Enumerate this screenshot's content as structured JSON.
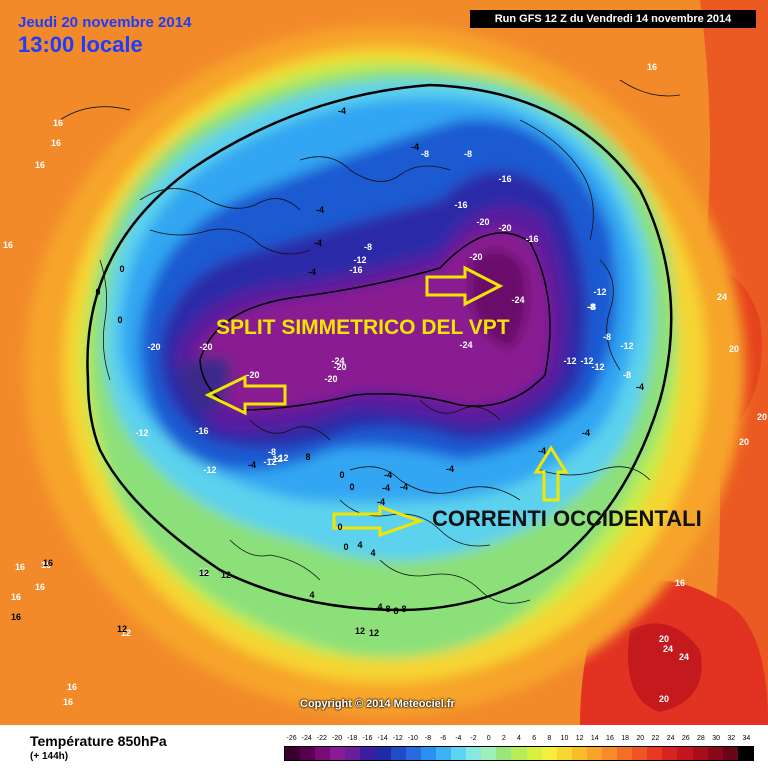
{
  "header": {
    "date": "Jeudi 20 novembre 2014",
    "time": "13:00 locale",
    "run": "Run GFS 12 Z du Vendredi 14 novembre 2014"
  },
  "annotations": {
    "split": "SPLIT SIMMETRICO DEL VPT",
    "correnti": "CORRENTI OCCIDENTALI",
    "arrow_color": "#f2e600"
  },
  "footer": {
    "title": "Température 850hPa",
    "subtitle": "(+ 144h)",
    "copyright": "Copyright © 2014 Meteociel.fr"
  },
  "legend": {
    "labels": [
      "-26",
      "-24",
      "-22",
      "-20",
      "-18",
      "-16",
      "-14",
      "-12",
      "-10",
      "-8",
      "-6",
      "-4",
      "-2",
      "0",
      "2",
      "4",
      "6",
      "8",
      "10",
      "12",
      "14",
      "16",
      "18",
      "20",
      "22",
      "24",
      "26",
      "28",
      "30",
      "32",
      "34"
    ],
    "colors": [
      "#3b0030",
      "#5a0050",
      "#7a0a78",
      "#8a1a96",
      "#6a1f9a",
      "#3b1fa0",
      "#1f2aa8",
      "#1f4cc8",
      "#2a6ae0",
      "#2a90f0",
      "#3ab2f4",
      "#5cd4f4",
      "#86e8e0",
      "#9ef0b8",
      "#9ae67a",
      "#b8ec5a",
      "#d8f040",
      "#f4f03a",
      "#f6d82e",
      "#f8be2a",
      "#f8a42a",
      "#f88a2a",
      "#f46e26",
      "#ee5424",
      "#e63a22",
      "#d82420",
      "#c4161e",
      "#a80e1c",
      "#8a081a",
      "#6a0418",
      "#000000"
    ]
  },
  "map_labels": {
    "red_labels": [
      "16",
      "16",
      "16",
      "16",
      "16",
      "16",
      "16",
      "16",
      "16",
      "16",
      "16",
      "16",
      "20",
      "20",
      "20",
      "20",
      "20",
      "24",
      "24",
      "24",
      "12",
      "12",
      "12"
    ],
    "labels": [
      "-4",
      "-4",
      "-4",
      "-4",
      "-4",
      "-8",
      "-8",
      "-8",
      "-16",
      "-16",
      "-16",
      "-20",
      "-20",
      "-20",
      "-24",
      "-24",
      "-12",
      "-12",
      "-12",
      "-12",
      "-8",
      "-8",
      "-12",
      "-12",
      "-8",
      "-4",
      "-20",
      "-20",
      "-20",
      "-16",
      "-12",
      "-12",
      "-4",
      "-12",
      "-8",
      "-24",
      "-20",
      "-20",
      "0",
      "0",
      "0",
      "0",
      "4",
      "4",
      "4",
      "8",
      "8",
      "8",
      "12",
      "12",
      "12",
      "12",
      "16",
      "16",
      "12",
      "-16",
      "-4",
      "-4",
      "-4",
      "-4",
      "-8",
      "-4",
      "-12",
      "-12",
      "-4",
      "0",
      "0",
      "0",
      "-4",
      "4",
      "8"
    ]
  }
}
